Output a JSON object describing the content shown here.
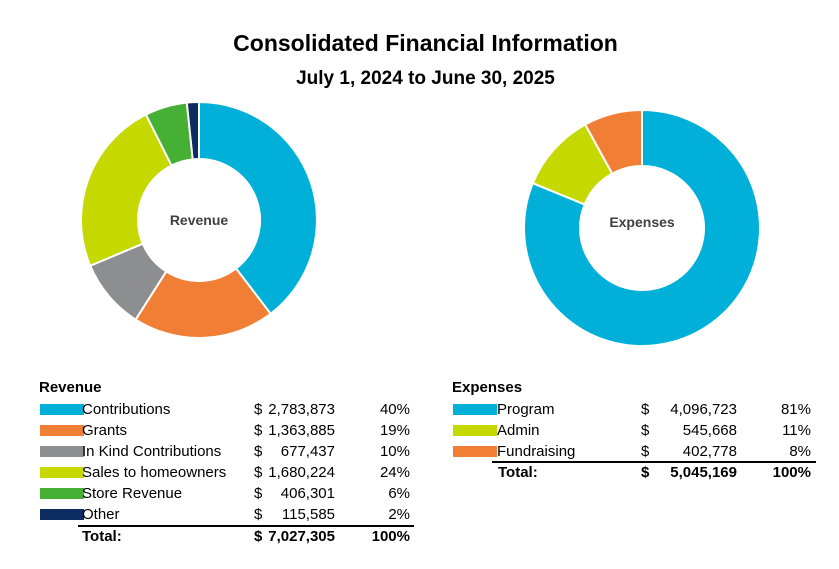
{
  "title": "Consolidated Financial Information",
  "subtitle": "July 1, 2024 to June 30, 2025",
  "chart_data": [
    {
      "type": "pie",
      "title": "Revenue",
      "center_label": "Revenue",
      "categories": [
        "Contributions",
        "Grants",
        "In Kind Contributions",
        "Sales to homeowners",
        "Store Revenue",
        "Other"
      ],
      "values": [
        2783873,
        1363885,
        677437,
        1680224,
        406301,
        115585
      ],
      "percents": [
        "40%",
        "19%",
        "10%",
        "24%",
        "6%",
        "2%"
      ],
      "colors": [
        "#00B0D8",
        "#F07F35",
        "#8C8E8F",
        "#C5D800",
        "#45B034",
        "#0D2D61"
      ],
      "total": "$7,027,305",
      "total_pct": "100%"
    },
    {
      "type": "pie",
      "title": "Expenses",
      "center_label": "Expenses",
      "categories": [
        "Program",
        "Admin",
        "Fundraising"
      ],
      "values": [
        4096723,
        545668,
        402778
      ],
      "percents": [
        "81%",
        "11%",
        "8%"
      ],
      "colors": [
        "#00B0D8",
        "#C5D800",
        "#F07F35"
      ],
      "total": "5,045,169",
      "total_pct": "100%"
    }
  ],
  "revenue_table": {
    "header": "Revenue",
    "total_label": "Total:",
    "rows": [
      {
        "label": "Contributions",
        "dollar": "$",
        "amount": "2,783,873",
        "pct": "40%"
      },
      {
        "label": "Grants",
        "dollar": "$",
        "amount": "1,363,885",
        "pct": "19%"
      },
      {
        "label": "In Kind Contributions",
        "dollar": "$",
        "amount": "677,437",
        "pct": "10%"
      },
      {
        "label": "Sales to homeowners",
        "dollar": "$",
        "amount": "1,680,224",
        "pct": "24%"
      },
      {
        "label": "Store Revenue",
        "dollar": "$",
        "amount": "406,301",
        "pct": "6%"
      },
      {
        "label": "Other",
        "dollar": "$",
        "amount": "115,585",
        "pct": "2%"
      }
    ],
    "total_dollar": "$",
    "total_amount": "7,027,305",
    "total_pct": "100%"
  },
  "expenses_table": {
    "header": "Expenses",
    "total_label": "Total:",
    "rows": [
      {
        "label": "Program",
        "dollar": "$",
        "amount": "4,096,723",
        "pct": "81%"
      },
      {
        "label": "Admin",
        "dollar": "$",
        "amount": "545,668",
        "pct": "11%"
      },
      {
        "label": "Fundraising",
        "dollar": "$",
        "amount": "402,778",
        "pct": "8%"
      }
    ],
    "total_dollar": "$",
    "total_amount": "5,045,169",
    "total_pct": "100%"
  }
}
